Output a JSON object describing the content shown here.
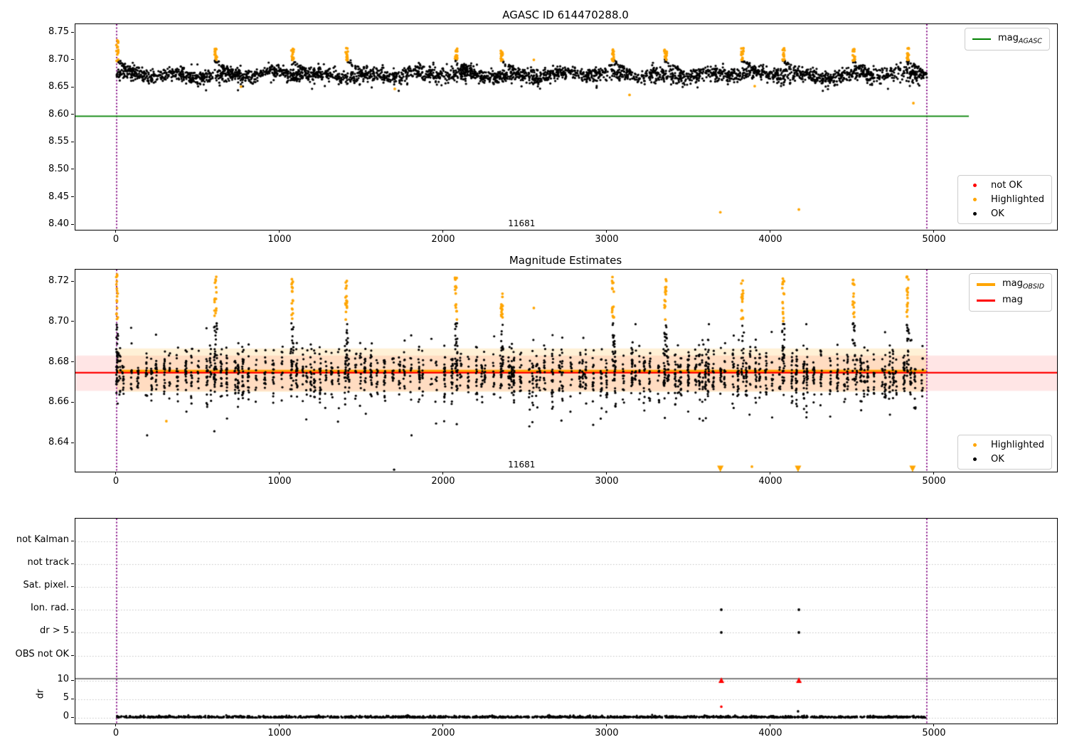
{
  "figure": {
    "background": "#ffffff"
  },
  "colors": {
    "ok": "#000000",
    "highlighted": "#ffa500",
    "not_ok": "#ff0000",
    "mag_agasc_line": "#008000",
    "mag_line": "#ff0000",
    "mag_obsid_line": "#ffa500",
    "obsid_boundary": "#800080",
    "grid": "#c2c2c2"
  },
  "chart_data": [
    {
      "id": "agasc-mag",
      "type": "scatter",
      "title": "AGASC ID 614470288.0",
      "xlim": [
        -252,
        5748
      ],
      "ylim": [
        8.391,
        8.766
      ],
      "xticks": [
        0,
        1000,
        2000,
        3000,
        4000,
        5000
      ],
      "yticks": [
        8.75,
        8.7,
        8.65,
        8.6,
        8.55,
        8.5,
        8.45,
        8.4
      ],
      "annotation": {
        "text": "11681",
        "x": 2480,
        "y": 8.402
      },
      "obsid_boundaries": [
        0,
        4952
      ],
      "agasc_mag_line": {
        "value": 8.598,
        "x0": -252,
        "x1": 5209,
        "color": "#008000"
      },
      "legend_line": {
        "items": [
          {
            "label_base": "mag",
            "label_sub": "AGASC",
            "color": "#008000",
            "marker": "line"
          }
        ]
      },
      "legend_points": {
        "items": [
          {
            "label": "not OK",
            "color": "#ff0000"
          },
          {
            "label": "Highlighted",
            "color": "#ffa500"
          },
          {
            "label": "OK",
            "color": "#000000"
          }
        ]
      },
      "series": {
        "ok": {
          "color": "#000000",
          "n": 3000,
          "x_range": [
            0,
            4952
          ],
          "y_center": 8.6735,
          "y_sigma": 0.0068,
          "y_clip": [
            8.6485,
            8.6995
          ]
        },
        "cluster_starts": [
          0,
          600,
          1070,
          1400,
          2070,
          2350,
          3030,
          3350,
          3820,
          4070,
          4500,
          4830
        ],
        "highlighted_cluster_y": [
          8.699,
          8.7225
        ],
        "first_cluster_y_max": 8.737,
        "highlighted_outliers": [
          [
            760,
            8.652
          ],
          [
            1700,
            8.648
          ],
          [
            2550,
            8.701
          ],
          [
            3135,
            8.637
          ],
          [
            3690,
            8.423
          ],
          [
            3900,
            8.653
          ],
          [
            4170,
            8.428
          ],
          [
            4870,
            8.622
          ]
        ]
      }
    },
    {
      "id": "magnitude-estimates",
      "type": "scatter",
      "title": "Magnitude Estimates",
      "xlim": [
        -252,
        5748
      ],
      "ylim": [
        8.626,
        8.726
      ],
      "xticks": [
        0,
        1000,
        2000,
        3000,
        4000,
        5000
      ],
      "yticks": [
        8.72,
        8.7,
        8.68,
        8.66,
        8.64
      ],
      "annotation": {
        "text": "11681",
        "x": 2480,
        "y": 8.629
      },
      "obsid_boundaries": [
        0,
        4952
      ],
      "mag_line": {
        "value": 8.675,
        "x0": -252,
        "x1": 5748,
        "color": "#ff0000"
      },
      "mag_obsid_line": {
        "value": 8.6757,
        "x0": 0,
        "x1": 4952,
        "color": "#ffa500"
      },
      "bands": [
        {
          "y0": 8.666,
          "y1": 8.6835,
          "x0": -252,
          "x1": 5748,
          "color": "rgba(255,0,0,0.10)"
        },
        {
          "y0": 8.6655,
          "y1": 8.687,
          "x0": 0,
          "x1": 4952,
          "color": "rgba(255,165,0,0.16)"
        }
      ],
      "legend_lines": {
        "items": [
          {
            "label_base": "mag",
            "label_sub": "OBSID",
            "color": "#ffa500"
          },
          {
            "label_base": "mag",
            "label_sub": "",
            "color": "#ff0000"
          }
        ]
      },
      "legend_points": {
        "items": [
          {
            "label": "Highlighted",
            "color": "#ffa500"
          },
          {
            "label": "OK",
            "color": "#000000"
          }
        ]
      },
      "series": {
        "ok": {
          "color": "#000000",
          "n": 2300,
          "x_range": [
            0,
            4952
          ],
          "y_center": 8.674,
          "y_sigma": 0.0062,
          "y_clip": [
            8.65,
            8.699
          ]
        },
        "cluster_starts": [
          0,
          600,
          1070,
          1400,
          2070,
          2350,
          3030,
          3350,
          3820,
          4070,
          4500,
          4830
        ],
        "highlighted_cluster_y": [
          8.7005,
          8.7225
        ],
        "highlighted_outliers": [
          [
            304,
            8.651
          ],
          [
            2550,
            8.707
          ],
          [
            3883,
            8.6285
          ]
        ],
        "ok_outliers": [
          [
            1696,
            8.627
          ]
        ],
        "clipped_below": {
          "x": [
            3690,
            4165,
            4865
          ],
          "color": "#ffa500"
        }
      }
    },
    {
      "id": "flags-dr",
      "type": "scatter",
      "title": "",
      "xlim": [
        -252,
        5748
      ],
      "xticks": [
        0,
        1000,
        2000,
        3000,
        4000,
        5000
      ],
      "categories": [
        "not Kalman",
        "not track",
        "Sat. pixel.",
        "Ion. rad.",
        "dr > 5",
        "OBS not OK"
      ],
      "dr_axis": {
        "label": "dr",
        "ticks": [
          10,
          5,
          0
        ],
        "threshold_line": 10.5
      },
      "obsid_boundaries": [
        0,
        4952
      ],
      "series": {
        "dr_ok": {
          "color": "#000000",
          "n": 1750,
          "x_range": [
            0,
            4952
          ],
          "typical_range": [
            0,
            0.8
          ]
        },
        "flag_points": [
          {
            "x": 3696,
            "category": "Ion. rad.",
            "color": "#000000"
          },
          {
            "x": 4170,
            "category": "Ion. rad.",
            "color": "#000000"
          },
          {
            "x": 3696,
            "category": "dr > 5",
            "color": "#000000"
          },
          {
            "x": 4170,
            "category": "dr > 5",
            "color": "#000000"
          }
        ],
        "dr_clipped_high": [
          {
            "x": 3696,
            "color": "#ff0000"
          },
          {
            "x": 4170,
            "color": "#ff0000"
          }
        ],
        "dr_outliers": [
          {
            "x": 3696,
            "dr": 3.0,
            "color": "#ff0000"
          },
          {
            "x": 4165,
            "dr": 1.75,
            "color": "#000000"
          }
        ]
      }
    }
  ]
}
